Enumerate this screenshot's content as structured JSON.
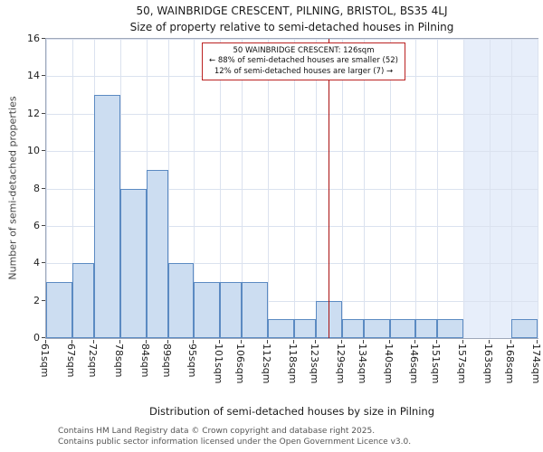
{
  "title": "50, WAINBRIDGE CRESCENT, PILNING, BRISTOL, BS35 4LJ",
  "subtitle": "Size of property relative to semi-detached houses in Pilning",
  "annotation": {
    "line1": "50 WAINBRIDGE CRESCENT: 126sqm",
    "line2": "← 88% of semi-detached houses are smaller (52)",
    "line3": "12% of semi-detached houses are larger (7) →"
  },
  "chart_data": {
    "type": "bar",
    "title": "50, WAINBRIDGE CRESCENT, PILNING, BRISTOL, BS35 4LJ",
    "subtitle": "Size of property relative to semi-detached houses in Pilning",
    "xlabel": "Distribution of semi-detached houses by size in Pilning",
    "ylabel": "Number of semi-detached properties",
    "ylim": [
      0,
      16
    ],
    "yticks": [
      0,
      2,
      4,
      6,
      8,
      10,
      12,
      14,
      16
    ],
    "grid": true,
    "bin_edges_sqm": [
      61,
      67,
      72,
      78,
      84,
      89,
      95,
      101,
      106,
      112,
      118,
      123,
      129,
      134,
      140,
      146,
      151,
      157,
      163,
      168,
      174
    ],
    "bin_labels": [
      "61sqm",
      "67sqm",
      "72sqm",
      "78sqm",
      "84sqm",
      "89sqm",
      "95sqm",
      "101sqm",
      "106sqm",
      "112sqm",
      "118sqm",
      "123sqm",
      "129sqm",
      "134sqm",
      "140sqm",
      "146sqm",
      "151sqm",
      "157sqm",
      "163sqm",
      "168sqm",
      "174sqm"
    ],
    "values": [
      3,
      4,
      13,
      8,
      9,
      4,
      3,
      3,
      3,
      1,
      1,
      2,
      1,
      1,
      1,
      1,
      1,
      0,
      0,
      1
    ],
    "marker_value_sqm": 126,
    "shaded_from_sqm": 157,
    "smaller_pct": 88,
    "smaller_count": 52,
    "larger_pct": 12,
    "larger_count": 7,
    "colors": {
      "bar_fill": "#ccddf1",
      "bar_border": "#5b8ac2",
      "marker_line": "#aa1111",
      "annotation_border": "#bb2222",
      "grid": "#dbe2ef",
      "shaded_region": "#e7eefa"
    }
  },
  "footer": {
    "line1": "Contains HM Land Registry data © Crown copyright and database right 2025.",
    "line2": "Contains public sector information licensed under the Open Government Licence v3.0."
  }
}
